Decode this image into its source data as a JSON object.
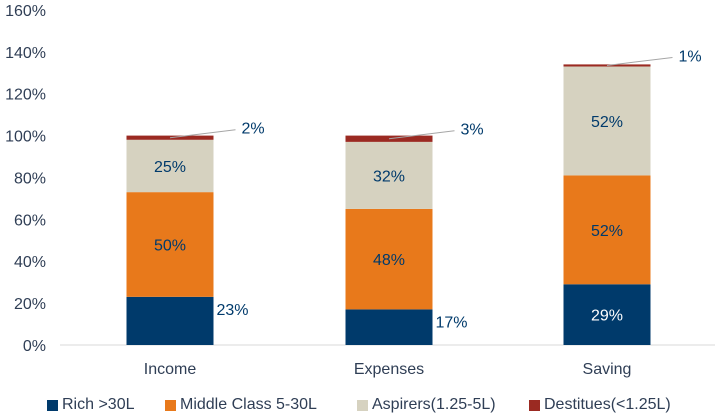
{
  "chart_data": {
    "type": "bar",
    "stacked": true,
    "categories": [
      "Income",
      "Expenses",
      "Saving"
    ],
    "ylim": [
      0,
      160
    ],
    "yticks": [
      0,
      20,
      40,
      60,
      80,
      100,
      120,
      140,
      160
    ],
    "ytick_labels": [
      "0%",
      "20%",
      "40%",
      "60%",
      "80%",
      "100%",
      "120%",
      "140%",
      "160%"
    ],
    "grid": false,
    "legend_position": "bottom",
    "series": [
      {
        "name": "Rich >30L",
        "color": "#003a6b",
        "values": [
          23,
          17,
          29
        ],
        "labels": [
          "23%",
          "17%",
          "29%"
        ]
      },
      {
        "name": "Middle Class 5-30L",
        "color": "#e8791b",
        "values": [
          50,
          48,
          52
        ],
        "labels": [
          "50%",
          "48%",
          "52%"
        ]
      },
      {
        "name": "Aspirers(1.25-5L)",
        "color": "#d6d2c0",
        "values": [
          25,
          32,
          52
        ],
        "labels": [
          "25%",
          "32%",
          "52%"
        ]
      },
      {
        "name": "Destitues(<1.25L)",
        "color": "#9b2a22",
        "values": [
          2,
          3,
          1
        ],
        "labels": [
          "2%",
          "3%",
          "1%"
        ]
      }
    ]
  }
}
